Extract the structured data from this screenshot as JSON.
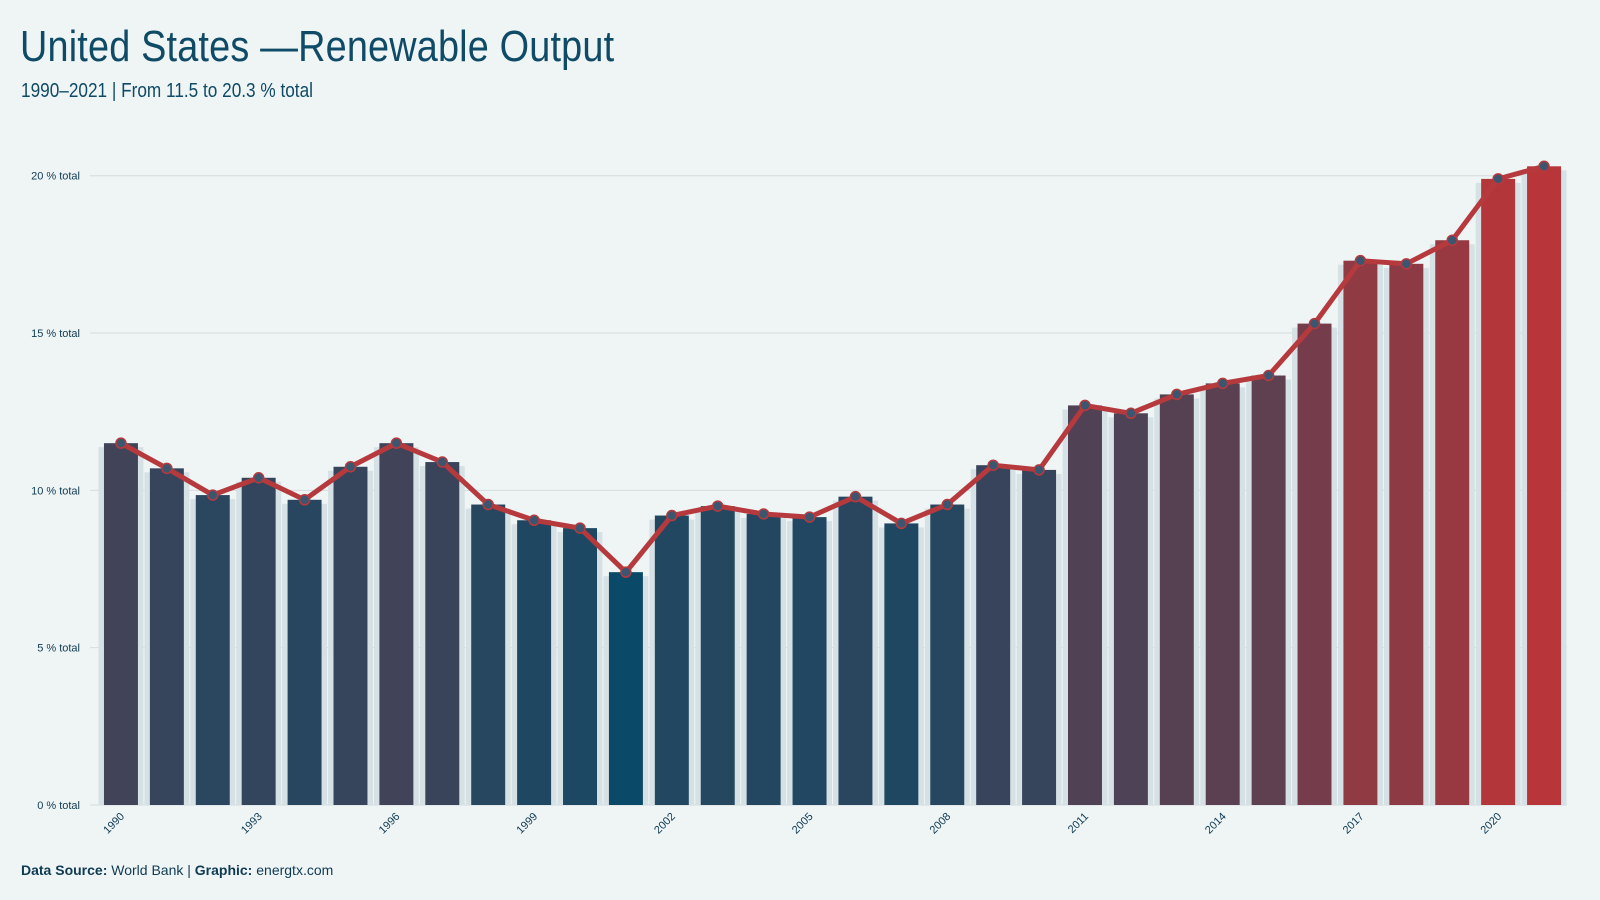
{
  "title": "United States —Renewable Output",
  "subtitle": "1990–2021 | From 11.5 to 20.3 % total",
  "footer": {
    "source_label": "Data Source:",
    "source_value": "World Bank",
    "separator": "|",
    "graphic_label": "Graphic:",
    "graphic_value": "energtx.com"
  },
  "colors": {
    "background": "#eff5f5",
    "line": "#b63a3d",
    "marker": "#3d5670",
    "low": "#0a4a68",
    "high": "#b83539",
    "grid": "#d4dcde",
    "bar_backdrop": "#d6e1e5"
  },
  "chart_data": {
    "type": "bar",
    "x": [
      1990,
      1991,
      1992,
      1993,
      1994,
      1995,
      1996,
      1997,
      1998,
      1999,
      2000,
      2001,
      2002,
      2003,
      2004,
      2005,
      2006,
      2007,
      2008,
      2009,
      2010,
      2011,
      2012,
      2013,
      2014,
      2015,
      2016,
      2017,
      2018,
      2019,
      2020,
      2021
    ],
    "values": [
      11.5,
      10.7,
      9.85,
      10.4,
      9.7,
      10.75,
      11.5,
      10.9,
      9.55,
      9.05,
      8.8,
      7.4,
      9.2,
      9.5,
      9.25,
      9.15,
      9.8,
      8.95,
      9.55,
      10.8,
      10.65,
      12.7,
      12.45,
      13.05,
      13.4,
      13.65,
      15.3,
      17.3,
      17.2,
      17.95,
      19.9,
      20.3
    ],
    "overlay_line": true,
    "ylim": [
      0,
      20.5
    ],
    "yticks": [
      0,
      5,
      10,
      15,
      20
    ],
    "ytick_suffix": " % total",
    "xtick_labels": [
      "1990",
      "1993",
      "1996",
      "1999",
      "2002",
      "2005",
      "2008",
      "2011",
      "2014",
      "2017",
      "2020"
    ],
    "grid": true,
    "legend": "none"
  }
}
